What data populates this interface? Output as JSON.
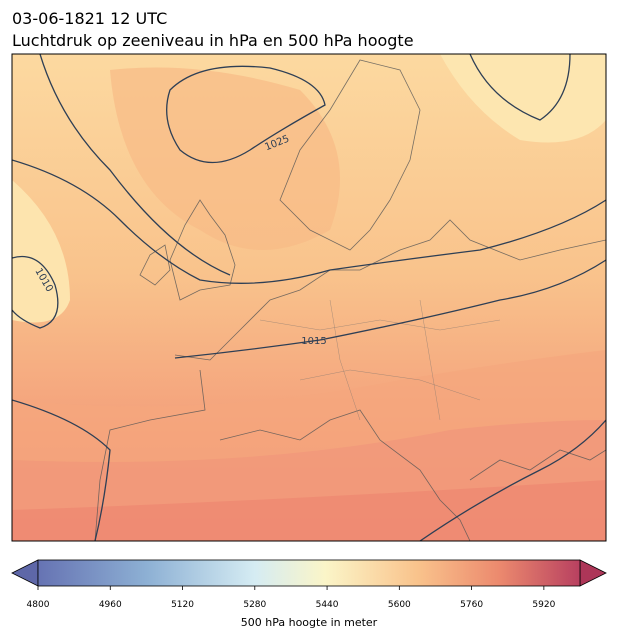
{
  "header": {
    "title": "03-06-1821 12 UTC",
    "subtitle": "Luchtdruk op zeeniveau in hPa en 500 hPa hoogte"
  },
  "map": {
    "contour_labels": [
      "1025",
      "1010",
      "1015"
    ]
  },
  "colorbar": {
    "lim": [
      4800,
      6000
    ],
    "ticks": [
      4800,
      4960,
      5120,
      5280,
      5440,
      5600,
      5760,
      5920
    ],
    "label": "500 hPa hoogte in meter"
  }
}
